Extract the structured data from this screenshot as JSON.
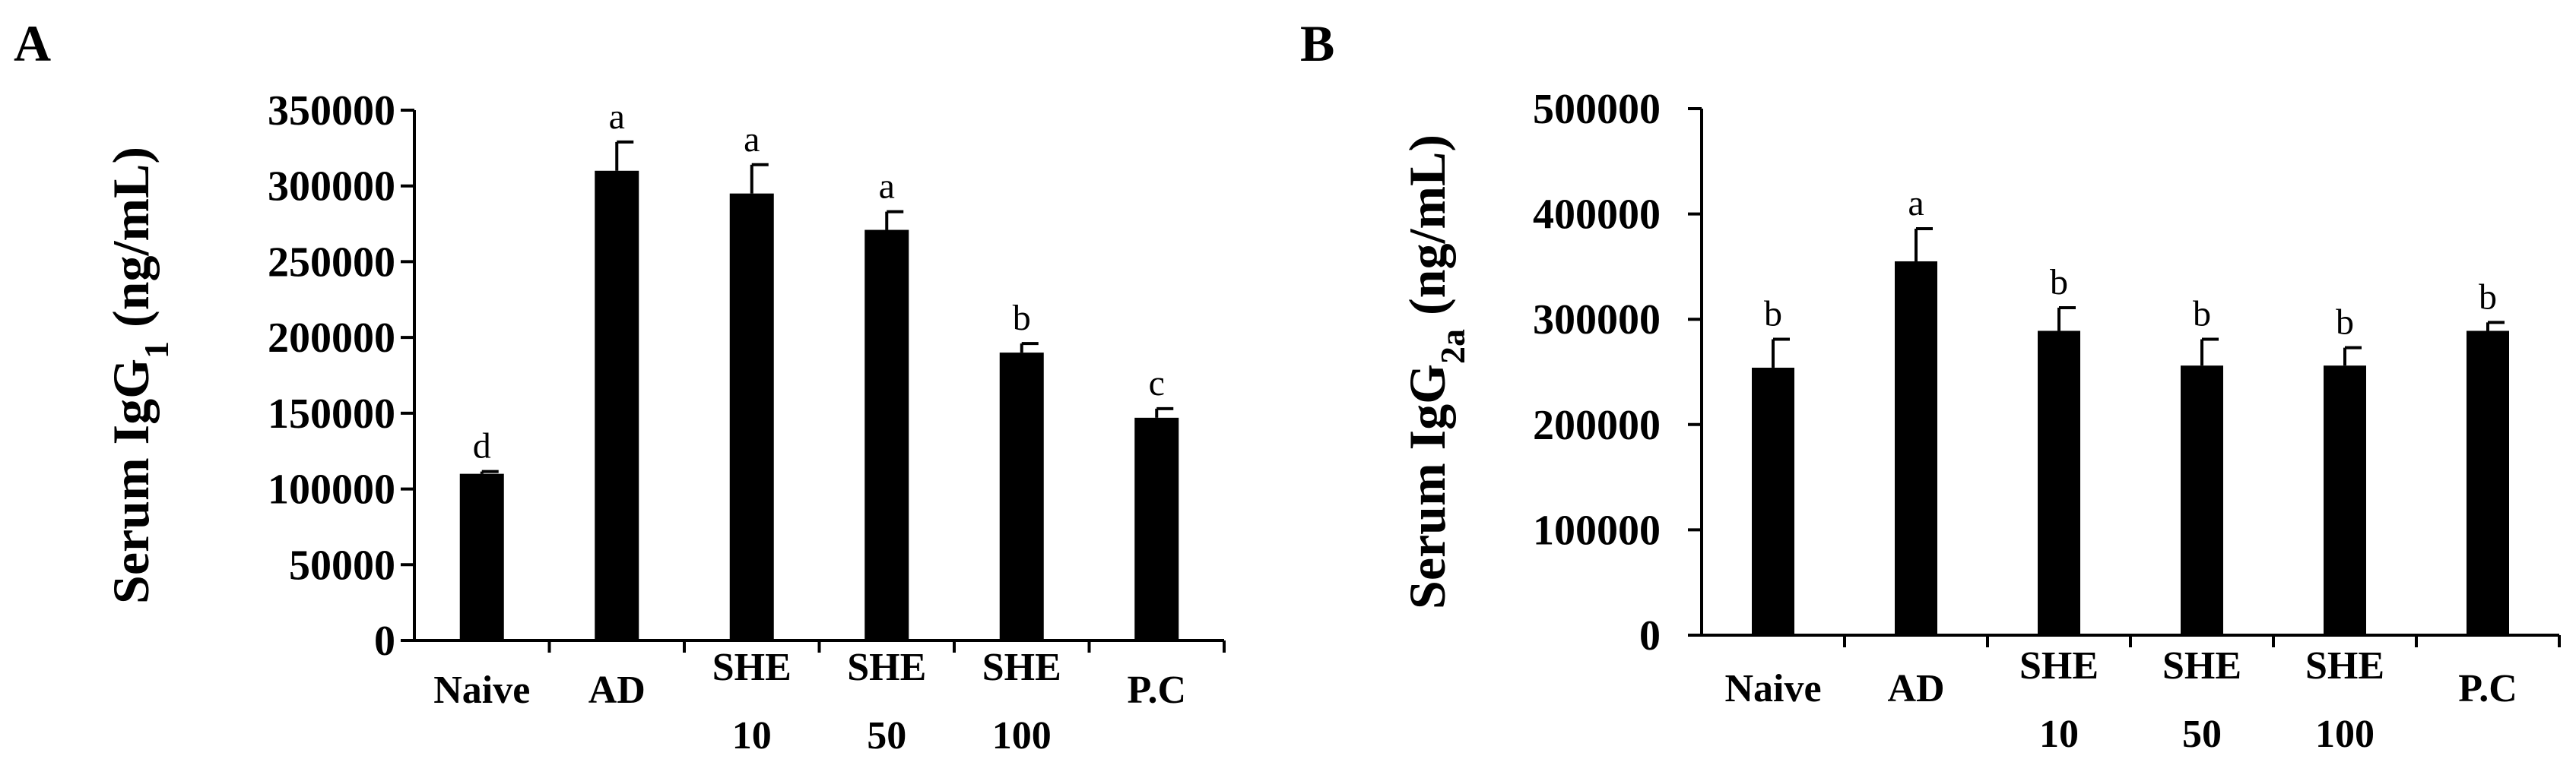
{
  "chart_data": [
    {
      "panel": "A",
      "type": "bar",
      "categories": [
        [
          "Naive"
        ],
        [
          "AD"
        ],
        [
          "SHE",
          "10"
        ],
        [
          "SHE",
          "50"
        ],
        [
          "SHE",
          "100"
        ],
        [
          "P.C"
        ]
      ],
      "values": [
        110000,
        310000,
        295000,
        271000,
        190000,
        147000
      ],
      "errors": [
        1500,
        19000,
        19000,
        12000,
        6000,
        6000
      ],
      "significance": [
        "d",
        "a",
        "a",
        "a",
        "b",
        "c"
      ],
      "ylabel": "Serum IgG",
      "ylabel_sub": "1",
      "ylabel_unit": "(ng/mL)",
      "ylim": [
        0,
        350000
      ],
      "yticks": [
        0,
        50000,
        100000,
        150000,
        200000,
        250000,
        300000,
        350000
      ],
      "grid": false,
      "bar_color": "#000000"
    },
    {
      "panel": "B",
      "type": "bar",
      "categories": [
        [
          "Naive"
        ],
        [
          "AD"
        ],
        [
          "SHE",
          "10"
        ],
        [
          "SHE",
          "50"
        ],
        [
          "SHE",
          "100"
        ],
        [
          "P.C"
        ]
      ],
      "values": [
        254000,
        355000,
        289000,
        256000,
        256000,
        289000
      ],
      "errors": [
        27000,
        31000,
        22000,
        25000,
        17000,
        8000
      ],
      "significance": [
        "b",
        "a",
        "b",
        "b",
        "b",
        "b"
      ],
      "ylabel": "Serum IgG",
      "ylabel_sub": "2a",
      "ylabel_unit": "(ng/mL)",
      "ylim": [
        0,
        500000
      ],
      "yticks": [
        0,
        100000,
        200000,
        300000,
        400000,
        500000
      ],
      "grid": false,
      "bar_color": "#000000"
    }
  ]
}
